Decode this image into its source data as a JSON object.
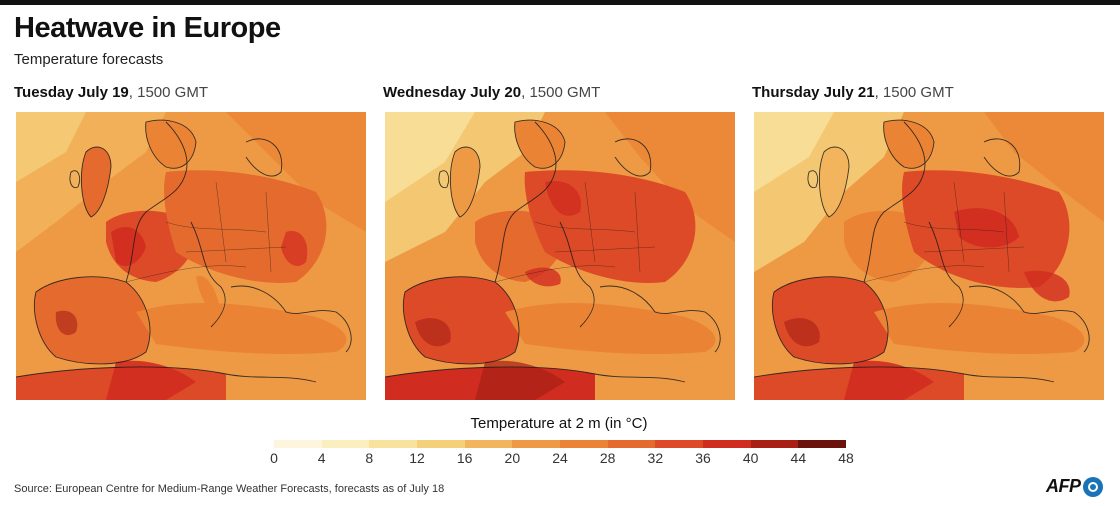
{
  "header": {
    "title": "Heatwave in Europe",
    "subtitle": "Temperature forecasts"
  },
  "panels": [
    {
      "day": "Tuesday July 19",
      "time": ", 1500 GMT"
    },
    {
      "day": "Wednesday July 20",
      "time": ", 1500 GMT"
    },
    {
      "day": "Thursday July 21",
      "time": ", 1500 GMT"
    }
  ],
  "legend": {
    "title": "Temperature at 2 m (in °C)",
    "ticks": [
      "0",
      "4",
      "8",
      "12",
      "16",
      "20",
      "24",
      "28",
      "32",
      "36",
      "40",
      "44",
      "48"
    ],
    "colors": [
      "#fdf6dd",
      "#fbefc0",
      "#f8e29d",
      "#f5d07a",
      "#f2b45c",
      "#ee9a45",
      "#ea8434",
      "#e56a2d",
      "#dd4a27",
      "#d12c20",
      "#a81f16",
      "#6b120c"
    ]
  },
  "footer": {
    "source": "Source: European Centre for Medium-Range Weather Forecasts, forecasts as of July 18",
    "logo": "AFP"
  }
}
